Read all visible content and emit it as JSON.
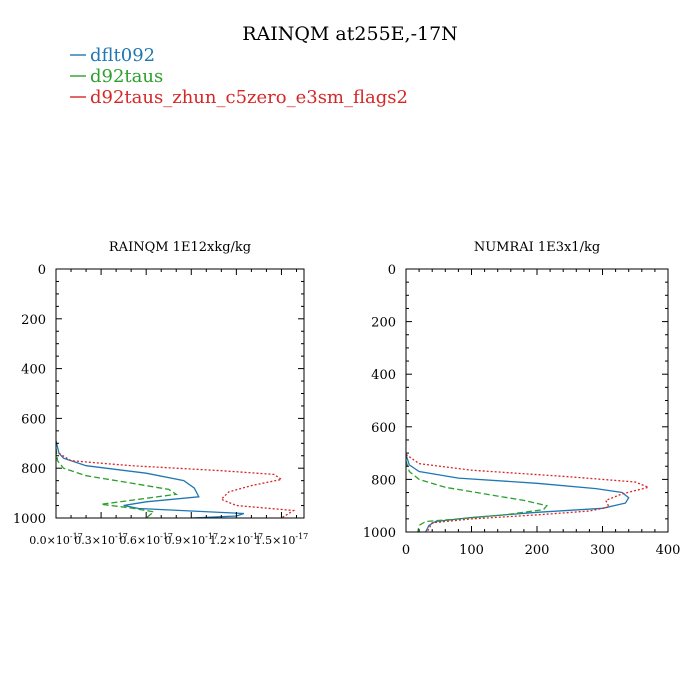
{
  "title": "RAINQM at255E,-17N",
  "legend": [
    {
      "label": "dflt092",
      "color": "#1f77b4",
      "dash": "solid"
    },
    {
      "label": "d92taus",
      "color": "#2ca02c",
      "dash": "dashed"
    },
    {
      "label": "d92taus_zhun_c5zero_e3sm_flags2",
      "color": "#d62728",
      "dash": "dotted"
    }
  ],
  "chart_data": [
    {
      "type": "line",
      "title": "RAINQM  1E12xkg/kg",
      "xlim": [
        0,
        1.65e-17
      ],
      "ylim": [
        1000,
        0
      ],
      "y_inverted": true,
      "xticks": [
        {
          "value": 0,
          "mant": "0.0×10",
          "exp": "-17"
        },
        {
          "value": 3e-18,
          "mant": "0.3×10",
          "exp": "-17"
        },
        {
          "value": 6e-18,
          "mant": "0.6×10",
          "exp": "-17"
        },
        {
          "value": 9e-18,
          "mant": "0.9×10",
          "exp": "-17"
        },
        {
          "value": 1.2e-17,
          "mant": "1.2×10",
          "exp": "-17"
        },
        {
          "value": 1.5e-17,
          "mant": "1.5×10",
          "exp": "-17"
        }
      ],
      "yticks": [
        0,
        200,
        400,
        600,
        800,
        1000
      ],
      "series": [
        {
          "name": "dflt092",
          "color": "#1f77b4",
          "dash": "solid",
          "x": [
            0,
            2e-19,
            5e-19,
            2e-18,
            6e-18,
            8.5e-18,
            9.2e-18,
            9.5e-18,
            6e-18,
            4.5e-18,
            5.5e-18,
            9e-18,
            1.25e-17,
            1.2e-17,
            9e-18
          ],
          "y": [
            690,
            740,
            760,
            790,
            820,
            850,
            880,
            915,
            935,
            950,
            962,
            972,
            982,
            992,
            1000
          ]
        },
        {
          "name": "d92taus",
          "color": "#2ca02c",
          "dash": "dashed",
          "x": [
            0,
            1e-19,
            5e-19,
            2e-18,
            5e-18,
            7.5e-18,
            8e-18,
            5.5e-18,
            3e-18,
            5e-18,
            6.5e-18,
            6e-18
          ],
          "y": [
            720,
            770,
            800,
            830,
            860,
            885,
            905,
            925,
            945,
            960,
            975,
            1000
          ]
        },
        {
          "name": "d92taus_zhun_c5zero_e3sm_flags2",
          "color": "#d62728",
          "dash": "dotted",
          "x": [
            2e-19,
            1e-18,
            5e-18,
            1.1e-17,
            1.45e-17,
            1.5e-17,
            1.3e-17,
            1.15e-17,
            1.1e-17,
            1.2e-17,
            1.58e-17,
            1.5e-17
          ],
          "y": [
            740,
            770,
            790,
            810,
            825,
            845,
            870,
            895,
            925,
            950,
            970,
            1000
          ]
        }
      ]
    },
    {
      "type": "line",
      "title": "NUMRAI  1E3x1/kg",
      "xlim": [
        0,
        400
      ],
      "ylim": [
        1000,
        0
      ],
      "y_inverted": true,
      "xticks": [
        {
          "value": 0,
          "label": "0"
        },
        {
          "value": 100,
          "label": "100"
        },
        {
          "value": 200,
          "label": "200"
        },
        {
          "value": 300,
          "label": "300"
        },
        {
          "value": 400,
          "label": "400"
        }
      ],
      "yticks": [
        0,
        200,
        400,
        600,
        800,
        1000
      ],
      "series": [
        {
          "name": "dflt092",
          "color": "#1f77b4",
          "dash": "solid",
          "x": [
            0,
            5,
            20,
            80,
            200,
            290,
            330,
            340,
            335,
            300,
            200,
            100,
            45,
            35,
            30
          ],
          "y": [
            705,
            745,
            770,
            795,
            815,
            835,
            850,
            870,
            890,
            910,
            925,
            945,
            960,
            975,
            1000
          ]
        },
        {
          "name": "d92taus",
          "color": "#2ca02c",
          "dash": "dashed",
          "x": [
            0,
            5,
            20,
            60,
            120,
            180,
            215,
            210,
            150,
            80,
            30,
            20,
            18
          ],
          "y": [
            730,
            770,
            800,
            830,
            855,
            880,
            900,
            915,
            935,
            950,
            960,
            975,
            1000
          ]
        },
        {
          "name": "d92taus_zhun_c5zero_e3sm_flags2",
          "color": "#d62728",
          "dash": "dotted",
          "x": [
            0,
            20,
            100,
            250,
            350,
            370,
            330,
            305,
            310,
            280,
            200,
            100,
            40,
            32
          ],
          "y": [
            705,
            740,
            765,
            790,
            810,
            830,
            855,
            880,
            905,
            920,
            935,
            950,
            965,
            1000
          ]
        }
      ]
    }
  ]
}
